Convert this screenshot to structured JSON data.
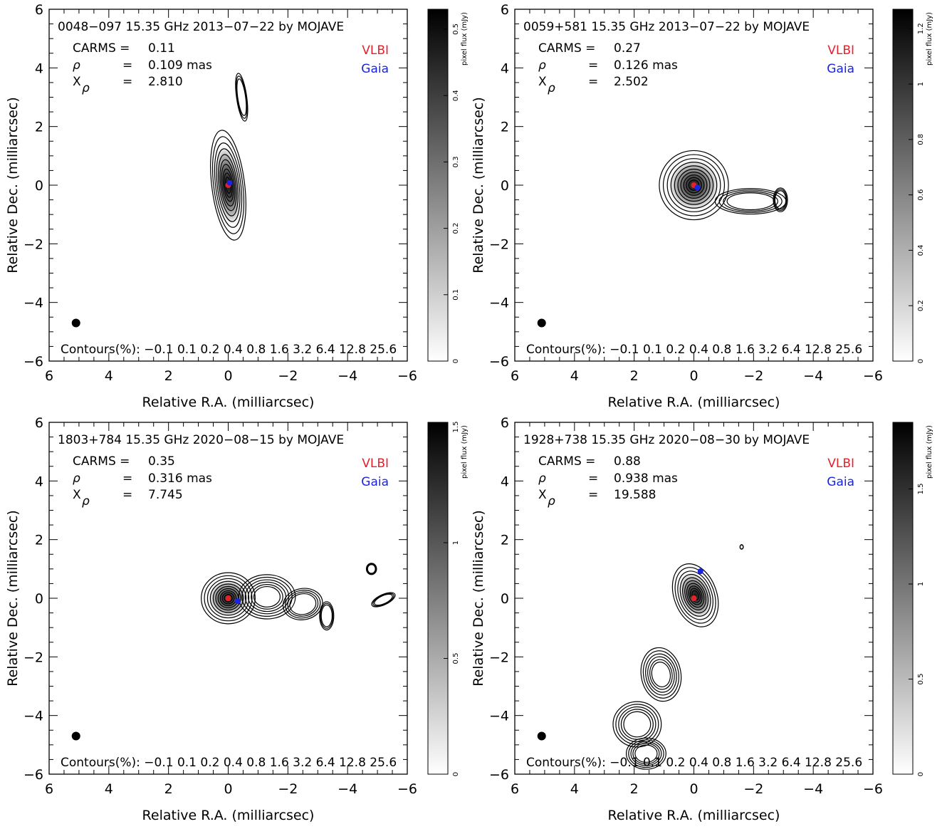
{
  "chart_data": [
    {
      "type": "heatmap",
      "title": "0048−097 15.35 GHz 2013−07−22 by MOJAVE",
      "stats": {
        "carms": {
          "label": "CARMS",
          "value": "0.11"
        },
        "rho": {
          "label": "ρ",
          "value": "0.109 mas"
        },
        "xrho": {
          "label": "X",
          "subscript": "ρ",
          "value": "2.810"
        }
      },
      "legend": [
        {
          "name": "VLBI",
          "color": "#e8202a"
        },
        {
          "name": "Gaia",
          "color": "#1a24e6"
        }
      ],
      "markers": {
        "vlbi": [
          0,
          0
        ],
        "gaia": [
          -0.05,
          0.08
        ]
      },
      "xlabel": "Relative R.A. (milliarcsec)",
      "ylabel": "Relative Dec. (milliarcsec)",
      "xlim": [
        6,
        -6
      ],
      "ylim": [
        -6,
        6
      ],
      "xticks": [
        "6",
        "4",
        "2",
        "0",
        "−2",
        "−4",
        "−6"
      ],
      "yticks": [
        "6",
        "4",
        "2",
        "0",
        "−2",
        "−4",
        "−6"
      ],
      "contours_label": "Contours(%):",
      "contour_levels": [
        "−0.1",
        "0.1",
        "0.2",
        "0.4",
        "0.8",
        "1.6",
        "3.2",
        "6.4",
        "12.8",
        "25.6"
      ],
      "beam_position": [
        5.1,
        -4.7
      ],
      "colorbar": {
        "label": "pixel flux (mJy)",
        "min": 0,
        "max": 0.53,
        "ticks": [
          "0",
          "0.1",
          "0.2",
          "0.3",
          "0.4",
          "0.5"
        ],
        "tick_values": [
          0,
          0.1,
          0.2,
          0.3,
          0.4,
          0.5
        ]
      }
    },
    {
      "type": "heatmap",
      "title": "0059+581 15.35 GHz 2013−07−22 by MOJAVE",
      "stats": {
        "carms": {
          "label": "CARMS",
          "value": "0.27"
        },
        "rho": {
          "label": "ρ",
          "value": "0.126 mas"
        },
        "xrho": {
          "label": "X",
          "subscript": "ρ",
          "value": "2.502"
        }
      },
      "legend": [
        {
          "name": "VLBI",
          "color": "#e8202a"
        },
        {
          "name": "Gaia",
          "color": "#1a24e6"
        }
      ],
      "markers": {
        "vlbi": [
          0,
          0
        ],
        "gaia": [
          -0.12,
          -0.08
        ]
      },
      "xlabel": "Relative R.A. (milliarcsec)",
      "ylabel": "Relative Dec. (milliarcsec)",
      "xlim": [
        6,
        -6
      ],
      "ylim": [
        -6,
        6
      ],
      "xticks": [
        "6",
        "4",
        "2",
        "0",
        "−2",
        "−4",
        "−6"
      ],
      "yticks": [
        "6",
        "4",
        "2",
        "0",
        "−2",
        "−4",
        "−6"
      ],
      "contours_label": "Contours(%):",
      "contour_levels": [
        "−0.1",
        "0.1",
        "0.2",
        "0.4",
        "0.8",
        "1.6",
        "3.2",
        "6.4",
        "12.8",
        "25.6"
      ],
      "beam_position": [
        5.1,
        -4.7
      ],
      "colorbar": {
        "label": "pixel flux (mJy)",
        "min": 0,
        "max": 1.27,
        "ticks": [
          "0",
          "0.2",
          "0.4",
          "0.6",
          "0.8",
          "1",
          "1.2"
        ],
        "tick_values": [
          0,
          0.2,
          0.4,
          0.6,
          0.8,
          1,
          1.2
        ]
      }
    },
    {
      "type": "heatmap",
      "title": "1803+784 15.35 GHz 2020−08−15 by MOJAVE",
      "stats": {
        "carms": {
          "label": "CARMS",
          "value": "0.35"
        },
        "rho": {
          "label": "ρ",
          "value": "0.316 mas"
        },
        "xrho": {
          "label": "X",
          "subscript": "ρ",
          "value": "7.745"
        }
      },
      "legend": [
        {
          "name": "VLBI",
          "color": "#e8202a"
        },
        {
          "name": "Gaia",
          "color": "#1a24e6"
        }
      ],
      "markers": {
        "vlbi": [
          0,
          0
        ],
        "gaia": [
          -0.32,
          -0.1
        ]
      },
      "xlabel": "Relative R.A. (milliarcsec)",
      "ylabel": "Relative Dec. (milliarcsec)",
      "xlim": [
        6,
        -6
      ],
      "ylim": [
        -6,
        6
      ],
      "xticks": [
        "6",
        "4",
        "2",
        "0",
        "−2",
        "−4",
        "−6"
      ],
      "yticks": [
        "6",
        "4",
        "2",
        "0",
        "−2",
        "−4",
        "−6"
      ],
      "contours_label": "Contours(%):",
      "contour_levels": [
        "−0.1",
        "0.1",
        "0.2",
        "0.4",
        "0.8",
        "1.6",
        "3.2",
        "6.4",
        "12.8",
        "25.6"
      ],
      "beam_position": [
        5.1,
        -4.7
      ],
      "colorbar": {
        "label": "pixel flux (mJy)",
        "min": 0,
        "max": 1.52,
        "ticks": [
          "0",
          "0.5",
          "1",
          "1.5"
        ],
        "tick_values": [
          0,
          0.5,
          1,
          1.5
        ]
      }
    },
    {
      "type": "heatmap",
      "title": "1928+738 15.35 GHz 2020−08−30 by MOJAVE",
      "stats": {
        "carms": {
          "label": "CARMS",
          "value": "0.88"
        },
        "rho": {
          "label": "ρ",
          "value": "0.938 mas"
        },
        "xrho": {
          "label": "X",
          "subscript": "ρ",
          "value": "19.588"
        }
      },
      "legend": [
        {
          "name": "VLBI",
          "color": "#e8202a"
        },
        {
          "name": "Gaia",
          "color": "#1a24e6"
        }
      ],
      "markers": {
        "vlbi": [
          0,
          0
        ],
        "gaia": [
          -0.22,
          0.92
        ]
      },
      "xlabel": "Relative R.A. (milliarcsec)",
      "ylabel": "Relative Dec. (milliarcsec)",
      "xlim": [
        6,
        -6
      ],
      "ylim": [
        -6,
        6
      ],
      "xticks": [
        "6",
        "4",
        "2",
        "0",
        "−2",
        "−4",
        "−6"
      ],
      "yticks": [
        "6",
        "4",
        "2",
        "0",
        "−2",
        "−4",
        "−6"
      ],
      "contours_label": "Contours(%):",
      "contour_levels": [
        "−0.1",
        "0.1",
        "0.2",
        "0.4",
        "0.8",
        "1.6",
        "3.2",
        "6.4",
        "12.8",
        "25.6"
      ],
      "beam_position": [
        5.1,
        -4.7
      ],
      "colorbar": {
        "label": "pixel flux (mJy)",
        "min": 0,
        "max": 1.85,
        "ticks": [
          "0",
          "0.5",
          "1",
          "1.5"
        ],
        "tick_values": [
          0,
          0.5,
          1,
          1.5
        ]
      }
    }
  ]
}
